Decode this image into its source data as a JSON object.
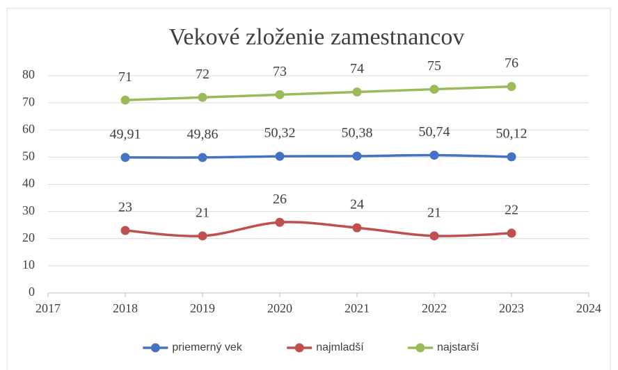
{
  "chart_data": {
    "type": "line",
    "title": "Vekové zloženie zamestnancov",
    "x": [
      2018,
      2019,
      2020,
      2021,
      2022,
      2023
    ],
    "xlim": [
      2017,
      2024
    ],
    "xticks": [
      2017,
      2018,
      2019,
      2020,
      2021,
      2022,
      2023,
      2024
    ],
    "ylim": [
      0,
      80
    ],
    "yticks": [
      0,
      10,
      20,
      30,
      40,
      50,
      60,
      70,
      80
    ],
    "grid": true,
    "smooth": true,
    "legend": "bottom",
    "series": [
      {
        "name": "priemerný vek",
        "color": "#4472c4",
        "values": [
          49.91,
          49.86,
          50.32,
          50.38,
          50.74,
          50.12
        ],
        "value_labels": [
          "49,91",
          "49,86",
          "50,32",
          "50,38",
          "50,74",
          "50,12"
        ]
      },
      {
        "name": "najmladší",
        "color": "#c0504d",
        "values": [
          23,
          21,
          26,
          24,
          21,
          22
        ]
      },
      {
        "name": "najstarší",
        "color": "#9bbb59",
        "values": [
          71,
          72,
          73,
          74,
          75,
          76
        ]
      }
    ]
  }
}
